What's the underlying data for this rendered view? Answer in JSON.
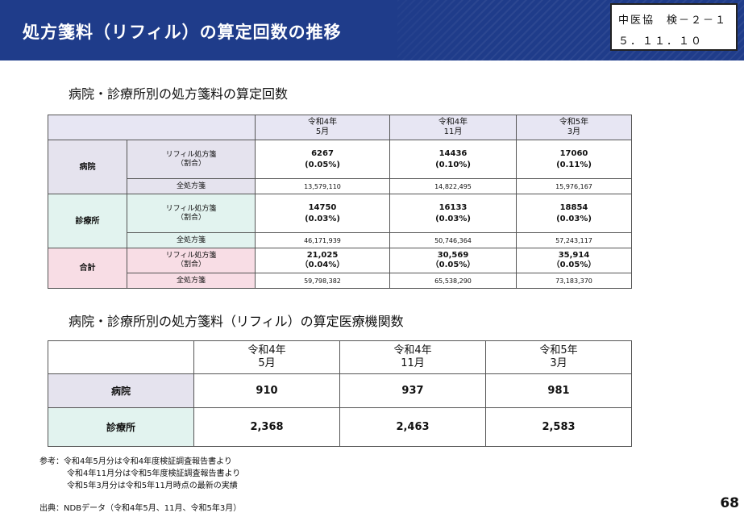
{
  "header": {
    "title": "処方箋料（リフィル）の算定回数の推移",
    "doc_id_line1": "中医協　検－２－１",
    "doc_id_line2": "５．１１．１０"
  },
  "section1": {
    "title": "病院・診療所別の処方箋料の算定回数",
    "periods": [
      {
        "l1": "令和4年",
        "l2": "5月"
      },
      {
        "l1": "令和4年",
        "l2": "11月"
      },
      {
        "l1": "令和5年",
        "l2": "3月"
      }
    ],
    "groups": [
      {
        "name": "病院",
        "refill_label_l1": "リフィル処方箋",
        "refill_label_l2": "（割合）",
        "total_label": "全処方箋",
        "refill_counts": [
          "6267",
          "14436",
          "17060"
        ],
        "refill_ratios": [
          "(0.05%)",
          "(0.10%)",
          "(0.11%)"
        ],
        "totals": [
          "13,579,110",
          "14,822,495",
          "15,976,167"
        ]
      },
      {
        "name": "診療所",
        "refill_label_l1": "リフィル処方箋",
        "refill_label_l2": "（割合）",
        "total_label": "全処方箋",
        "refill_counts": [
          "14750",
          "16133",
          "18854"
        ],
        "refill_ratios": [
          "(0.03%)",
          "(0.03%)",
          "(0.03%)"
        ],
        "totals": [
          "46,171,939",
          "50,746,364",
          "57,243,117"
        ]
      },
      {
        "name": "合計",
        "refill_label_l1": "リフィル処方箋",
        "refill_label_l2": "（割合）",
        "total_label": "全処方箋",
        "refill_counts": [
          "21,025",
          "30,569",
          "35,914"
        ],
        "refill_ratios": [
          "（0.04%）",
          "（0.05%）",
          "（0.05%）"
        ],
        "totals": [
          "59,798,382",
          "65,538,290",
          "73,183,370"
        ]
      }
    ]
  },
  "section2": {
    "title": "病院・診療所別の処方箋料（リフィル）の算定医療機関数",
    "periods": [
      {
        "l1": "令和4年",
        "l2": "5月"
      },
      {
        "l1": "令和4年",
        "l2": "11月"
      },
      {
        "l1": "令和5年",
        "l2": "3月"
      }
    ],
    "rows": [
      {
        "label": "病院",
        "values": [
          "910",
          "937",
          "981"
        ]
      },
      {
        "label": "診療所",
        "values": [
          "2,368",
          "2,463",
          "2,583"
        ]
      }
    ]
  },
  "notes": {
    "prefix": "参考：",
    "lines": [
      "令和4年5月分は令和4年度検証調査報告書より",
      "令和4年11月分は令和5年度検証調査報告書より",
      "令和5年3月分は令和5年11月時点の最新の実績"
    ]
  },
  "source": "出典：NDBデータ（令和4年5月、11月、令和5年3月）",
  "page_number": "68",
  "colors": {
    "header_bg": "#1f3c8a",
    "hospital_bg": "#e5e3ee",
    "clinic_bg": "#e2f3ef",
    "total_bg": "#f8dde5",
    "table_header_bg": "#e7e6f3"
  }
}
